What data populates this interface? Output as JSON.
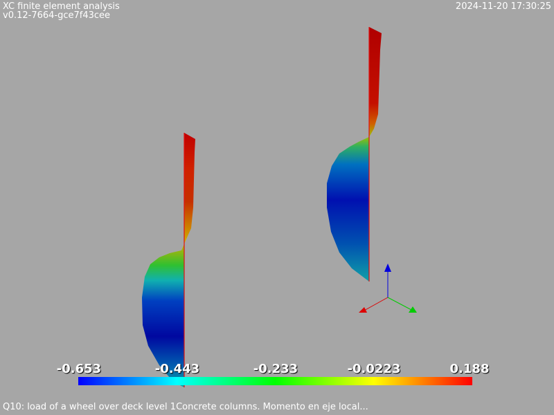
{
  "header": {
    "app_title": "XC finite element analysis",
    "version": "v0.12-7664-gce7f43cee",
    "timestamp": "2024-11-20 17:30:25"
  },
  "colorbar": {
    "labels": [
      "-0.653",
      "-0.443",
      "-0.233",
      "-0.0223",
      "0.188"
    ],
    "min": -0.653,
    "max": 0.188,
    "colormap": "rainbow blue-to-red"
  },
  "caption": "Q10: load of a wheel over deck level 1Concrete columns. Momento en eje local...",
  "axes_triad": {
    "x_color": "#dd0000",
    "y_color": "#00cc00",
    "z_color": "#0000dd"
  },
  "colors": {
    "background": "#a6a6a6",
    "member_line": "#e01010"
  }
}
